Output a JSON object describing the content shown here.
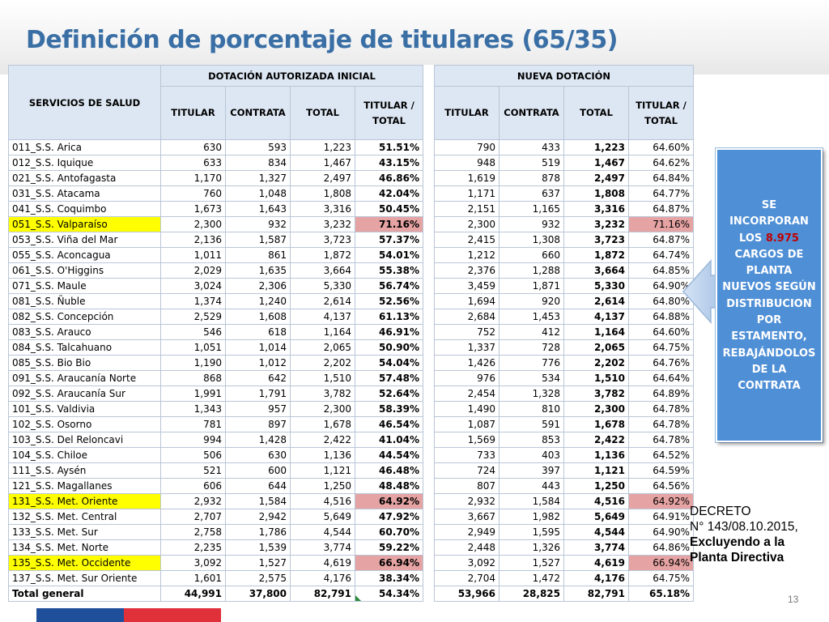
{
  "title": "Definición de porcentaje de titulares (65/35)",
  "headers": {
    "services": "SERVICIOS DE SALUD",
    "group_initial": "DOTACIÓN AUTORIZADA INICIAL",
    "group_new": "NUEVA DOTACIÓN",
    "titular": "TITULAR",
    "contrata": "CONTRATA",
    "total": "TOTAL",
    "ratio": "TITULAR / TOTAL"
  },
  "rows": [
    {
      "name": "011_S.S. Arica",
      "i_tit": "630",
      "i_con": "593",
      "i_tot": "1,223",
      "i_pct": "51.51%",
      "n_tit": "790",
      "n_con": "433",
      "n_tot": "1,223",
      "n_pct": "64.60%"
    },
    {
      "name": "012_S.S. Iquique",
      "i_tit": "633",
      "i_con": "834",
      "i_tot": "1,467",
      "i_pct": "43.15%",
      "n_tit": "948",
      "n_con": "519",
      "n_tot": "1,467",
      "n_pct": "64.62%"
    },
    {
      "name": "021_S.S. Antofagasta",
      "i_tit": "1,170",
      "i_con": "1,327",
      "i_tot": "2,497",
      "i_pct": "46.86%",
      "n_tit": "1,619",
      "n_con": "878",
      "n_tot": "2,497",
      "n_pct": "64.84%"
    },
    {
      "name": "031_S.S. Atacama",
      "i_tit": "760",
      "i_con": "1,048",
      "i_tot": "1,808",
      "i_pct": "42.04%",
      "n_tit": "1,171",
      "n_con": "637",
      "n_tot": "1,808",
      "n_pct": "64.77%"
    },
    {
      "name": "041_S.S. Coquimbo",
      "i_tit": "1,673",
      "i_con": "1,643",
      "i_tot": "3,316",
      "i_pct": "50.45%",
      "n_tit": "2,151",
      "n_con": "1,165",
      "n_tot": "3,316",
      "n_pct": "64.87%"
    },
    {
      "name": "051_S.S. Valparaíso",
      "i_tit": "2,300",
      "i_con": "932",
      "i_tot": "3,232",
      "i_pct": "71.16%",
      "n_tit": "2,300",
      "n_con": "932",
      "n_tot": "3,232",
      "n_pct": "71.16%"
    },
    {
      "name": "053_S.S. Viña del Mar",
      "i_tit": "2,136",
      "i_con": "1,587",
      "i_tot": "3,723",
      "i_pct": "57.37%",
      "n_tit": "2,415",
      "n_con": "1,308",
      "n_tot": "3,723",
      "n_pct": "64.87%"
    },
    {
      "name": "055_S.S. Aconcagua",
      "i_tit": "1,011",
      "i_con": "861",
      "i_tot": "1,872",
      "i_pct": "54.01%",
      "n_tit": "1,212",
      "n_con": "660",
      "n_tot": "1,872",
      "n_pct": "64.74%"
    },
    {
      "name": "061_S.S. O'Higgins",
      "i_tit": "2,029",
      "i_con": "1,635",
      "i_tot": "3,664",
      "i_pct": "55.38%",
      "n_tit": "2,376",
      "n_con": "1,288",
      "n_tot": "3,664",
      "n_pct": "64.85%"
    },
    {
      "name": "071_S.S. Maule",
      "i_tit": "3,024",
      "i_con": "2,306",
      "i_tot": "5,330",
      "i_pct": "56.74%",
      "n_tit": "3,459",
      "n_con": "1,871",
      "n_tot": "5,330",
      "n_pct": "64.90%"
    },
    {
      "name": "081_S.S. Ñuble",
      "i_tit": "1,374",
      "i_con": "1,240",
      "i_tot": "2,614",
      "i_pct": "52.56%",
      "n_tit": "1,694",
      "n_con": "920",
      "n_tot": "2,614",
      "n_pct": "64.80%"
    },
    {
      "name": "082_S.S. Concepción",
      "i_tit": "2,529",
      "i_con": "1,608",
      "i_tot": "4,137",
      "i_pct": "61.13%",
      "n_tit": "2,684",
      "n_con": "1,453",
      "n_tot": "4,137",
      "n_pct": "64.88%"
    },
    {
      "name": "083_S.S. Arauco",
      "i_tit": "546",
      "i_con": "618",
      "i_tot": "1,164",
      "i_pct": "46.91%",
      "n_tit": "752",
      "n_con": "412",
      "n_tot": "1,164",
      "n_pct": "64.60%"
    },
    {
      "name": "084_S.S. Talcahuano",
      "i_tit": "1,051",
      "i_con": "1,014",
      "i_tot": "2,065",
      "i_pct": "50.90%",
      "n_tit": "1,337",
      "n_con": "728",
      "n_tot": "2,065",
      "n_pct": "64.75%"
    },
    {
      "name": "085_S.S. Bio Bio",
      "i_tit": "1,190",
      "i_con": "1,012",
      "i_tot": "2,202",
      "i_pct": "54.04%",
      "n_tit": "1,426",
      "n_con": "776",
      "n_tot": "2,202",
      "n_pct": "64.76%"
    },
    {
      "name": "091_S.S. Araucanía Norte",
      "i_tit": "868",
      "i_con": "642",
      "i_tot": "1,510",
      "i_pct": "57.48%",
      "n_tit": "976",
      "n_con": "534",
      "n_tot": "1,510",
      "n_pct": "64.64%"
    },
    {
      "name": "092_S.S. Araucanía Sur",
      "i_tit": "1,991",
      "i_con": "1,791",
      "i_tot": "3,782",
      "i_pct": "52.64%",
      "n_tit": "2,454",
      "n_con": "1,328",
      "n_tot": "3,782",
      "n_pct": "64.89%"
    },
    {
      "name": "101_S.S. Valdivia",
      "i_tit": "1,343",
      "i_con": "957",
      "i_tot": "2,300",
      "i_pct": "58.39%",
      "n_tit": "1,490",
      "n_con": "810",
      "n_tot": "2,300",
      "n_pct": "64.78%"
    },
    {
      "name": "102_S.S. Osorno",
      "i_tit": "781",
      "i_con": "897",
      "i_tot": "1,678",
      "i_pct": "46.54%",
      "n_tit": "1,087",
      "n_con": "591",
      "n_tot": "1,678",
      "n_pct": "64.78%"
    },
    {
      "name": "103_S.S. Del Reloncavi",
      "i_tit": "994",
      "i_con": "1,428",
      "i_tot": "2,422",
      "i_pct": "41.04%",
      "n_tit": "1,569",
      "n_con": "853",
      "n_tot": "2,422",
      "n_pct": "64.78%"
    },
    {
      "name": "104_S.S. Chiloe",
      "i_tit": "506",
      "i_con": "630",
      "i_tot": "1,136",
      "i_pct": "44.54%",
      "n_tit": "733",
      "n_con": "403",
      "n_tot": "1,136",
      "n_pct": "64.52%"
    },
    {
      "name": "111_S.S. Aysén",
      "i_tit": "521",
      "i_con": "600",
      "i_tot": "1,121",
      "i_pct": "46.48%",
      "n_tit": "724",
      "n_con": "397",
      "n_tot": "1,121",
      "n_pct": "64.59%"
    },
    {
      "name": "121_S.S. Magallanes",
      "i_tit": "606",
      "i_con": "644",
      "i_tot": "1,250",
      "i_pct": "48.48%",
      "n_tit": "807",
      "n_con": "443",
      "n_tot": "1,250",
      "n_pct": "64.56%"
    },
    {
      "name": "131_S.S. Met. Oriente",
      "i_tit": "2,932",
      "i_con": "1,584",
      "i_tot": "4,516",
      "i_pct": "64.92%",
      "n_tit": "2,932",
      "n_con": "1,584",
      "n_tot": "4,516",
      "n_pct": "64.92%"
    },
    {
      "name": "132_S.S. Met. Central",
      "i_tit": "2,707",
      "i_con": "2,942",
      "i_tot": "5,649",
      "i_pct": "47.92%",
      "n_tit": "3,667",
      "n_con": "1,982",
      "n_tot": "5,649",
      "n_pct": "64.91%"
    },
    {
      "name": "133_S.S. Met. Sur",
      "i_tit": "2,758",
      "i_con": "1,786",
      "i_tot": "4,544",
      "i_pct": "60.70%",
      "n_tit": "2,949",
      "n_con": "1,595",
      "n_tot": "4,544",
      "n_pct": "64.90%"
    },
    {
      "name": "134_S.S. Met. Norte",
      "i_tit": "2,235",
      "i_con": "1,539",
      "i_tot": "3,774",
      "i_pct": "59.22%",
      "n_tit": "2,448",
      "n_con": "1,326",
      "n_tot": "3,774",
      "n_pct": "64.86%"
    },
    {
      "name": "135_S.S. Met. Occidente",
      "i_tit": "3,092",
      "i_con": "1,527",
      "i_tot": "4,619",
      "i_pct": "66.94%",
      "n_tit": "3,092",
      "n_con": "1,527",
      "n_tot": "4,619",
      "n_pct": "66.94%"
    },
    {
      "name": "137_S.S. Met. Sur Oriente",
      "i_tit": "1,601",
      "i_con": "2,575",
      "i_tot": "4,176",
      "i_pct": "38.34%",
      "n_tit": "2,704",
      "n_con": "1,472",
      "n_tot": "4,176",
      "n_pct": "64.75%"
    }
  ],
  "highlighted_rows": [
    "051_S.S. Valparaíso",
    "131_S.S. Met. Oriente",
    "135_S.S. Met. Occidente"
  ],
  "total_row": {
    "name": "Total general",
    "i_tit": "44,991",
    "i_con": "37,800",
    "i_tot": "82,791",
    "i_pct": "54.34%",
    "n_tit": "53,966",
    "n_con": "28,825",
    "n_tot": "82,791",
    "n_pct": "65.18%"
  },
  "callout": {
    "line1": "SE",
    "line2": "INCORPORAN",
    "line3_prefix": "LOS ",
    "line3_number": "8.975",
    "line4": "CARGOS DE",
    "line5": "PLANTA",
    "line6": "NUEVOS SEGÚN",
    "line7": "DISTRIBUCION",
    "line8": "POR",
    "line9": "ESTAMENTO,",
    "line10": "REBAJÁNDOLOS",
    "line11": "DE LA",
    "line12": "CONTRATA"
  },
  "decree": {
    "line1": "DECRETO",
    "line2": "N° 143/08.10.2015,",
    "line3": "Excluyendo a la",
    "line4": "Planta Directiva"
  },
  "page_number": "13",
  "colors": {
    "title": "#3a6fa5",
    "header_fill": "#dde7f3",
    "highlight_yellow": "#ffff00",
    "highlight_red": "#e6a3a3",
    "callout_fill": "#4f8fd6",
    "callout_number": "#c00000",
    "footer_blue": "#1f4f9a",
    "footer_red": "#e0303a"
  }
}
